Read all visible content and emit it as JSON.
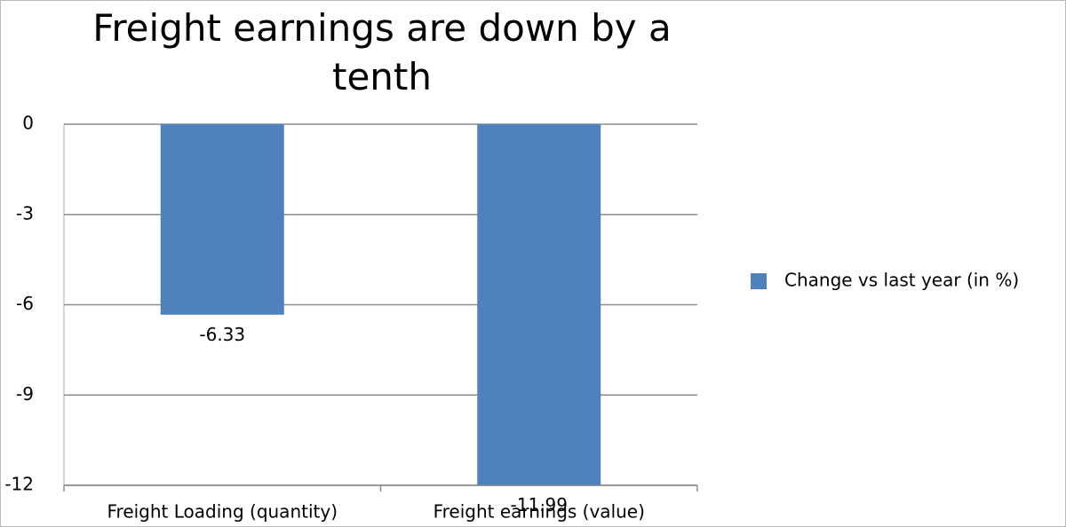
{
  "chart_data": {
    "type": "bar",
    "title": "Freight earnings are down by a tenth",
    "categories": [
      "Freight Loading (quantity)",
      "Freight earnings (value)"
    ],
    "series": [
      {
        "name": "Change vs last year (in %)",
        "color": "#4f81bd",
        "values": [
          -6.33,
          -11.99
        ]
      }
    ],
    "ylim": [
      -12,
      0
    ],
    "yticks": [
      0,
      -3,
      -6,
      -9,
      -12
    ],
    "grid": true,
    "legend": "right",
    "data_labels": true
  }
}
